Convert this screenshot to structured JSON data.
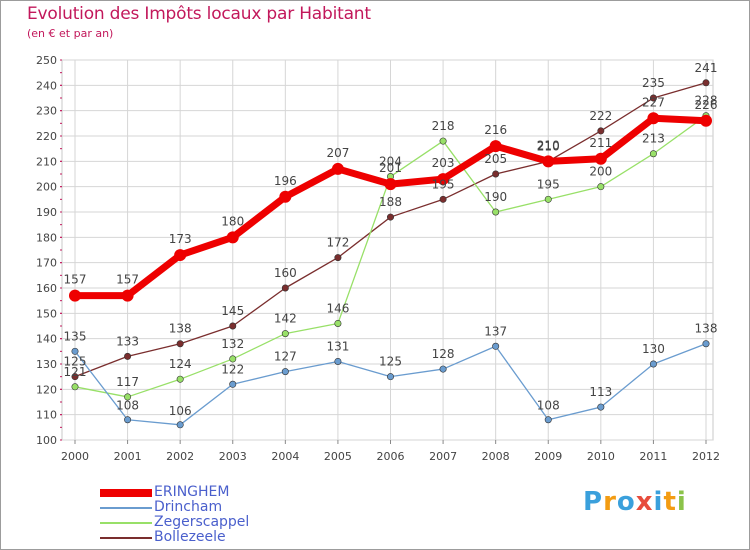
{
  "title": "Evolution des Impôts locaux par Habitant",
  "subtitle": "(en € et par an)",
  "logo": {
    "text": "Proxiti",
    "letters": [
      {
        "ch": "P",
        "color": "#3aa0dc"
      },
      {
        "ch": "r",
        "color": "#f39c12"
      },
      {
        "ch": "o",
        "color": "#3aa0dc"
      },
      {
        "ch": "x",
        "color": "#e74c3c"
      },
      {
        "ch": "i",
        "color": "#3aa0dc"
      },
      {
        "ch": "t",
        "color": "#f39c12"
      },
      {
        "ch": "i",
        "color": "#8bc34a"
      }
    ]
  },
  "chart_data": {
    "type": "line",
    "x": [
      "2000",
      "2001",
      "2002",
      "2003",
      "2004",
      "2005",
      "2006",
      "2007",
      "2008",
      "2009",
      "2010",
      "2011",
      "2012"
    ],
    "ylim": [
      100,
      250
    ],
    "yticks": [
      100,
      110,
      120,
      130,
      140,
      150,
      160,
      170,
      180,
      190,
      200,
      210,
      220,
      230,
      240,
      250
    ],
    "grid": true,
    "legend_position": "bottom-left",
    "series": [
      {
        "name": "ERINGHEM",
        "color": "#ee0000",
        "values": [
          157,
          157,
          173,
          180,
          196,
          207,
          201,
          203,
          216,
          210,
          211,
          227,
          226
        ]
      },
      {
        "name": "Drincham",
        "color": "#6a9ccf",
        "values": [
          135,
          108,
          106,
          122,
          127,
          131,
          125,
          128,
          137,
          108,
          113,
          130,
          138
        ]
      },
      {
        "name": "Zegerscappel",
        "color": "#98e068",
        "values": [
          121,
          117,
          124,
          132,
          142,
          146,
          204,
          218,
          190,
          195,
          200,
          213,
          228
        ]
      },
      {
        "name": "Bollezeele",
        "color": "#7a2e2e",
        "values": [
          125,
          133,
          138,
          145,
          160,
          172,
          188,
          195,
          205,
          210,
          222,
          235,
          241
        ]
      }
    ]
  }
}
